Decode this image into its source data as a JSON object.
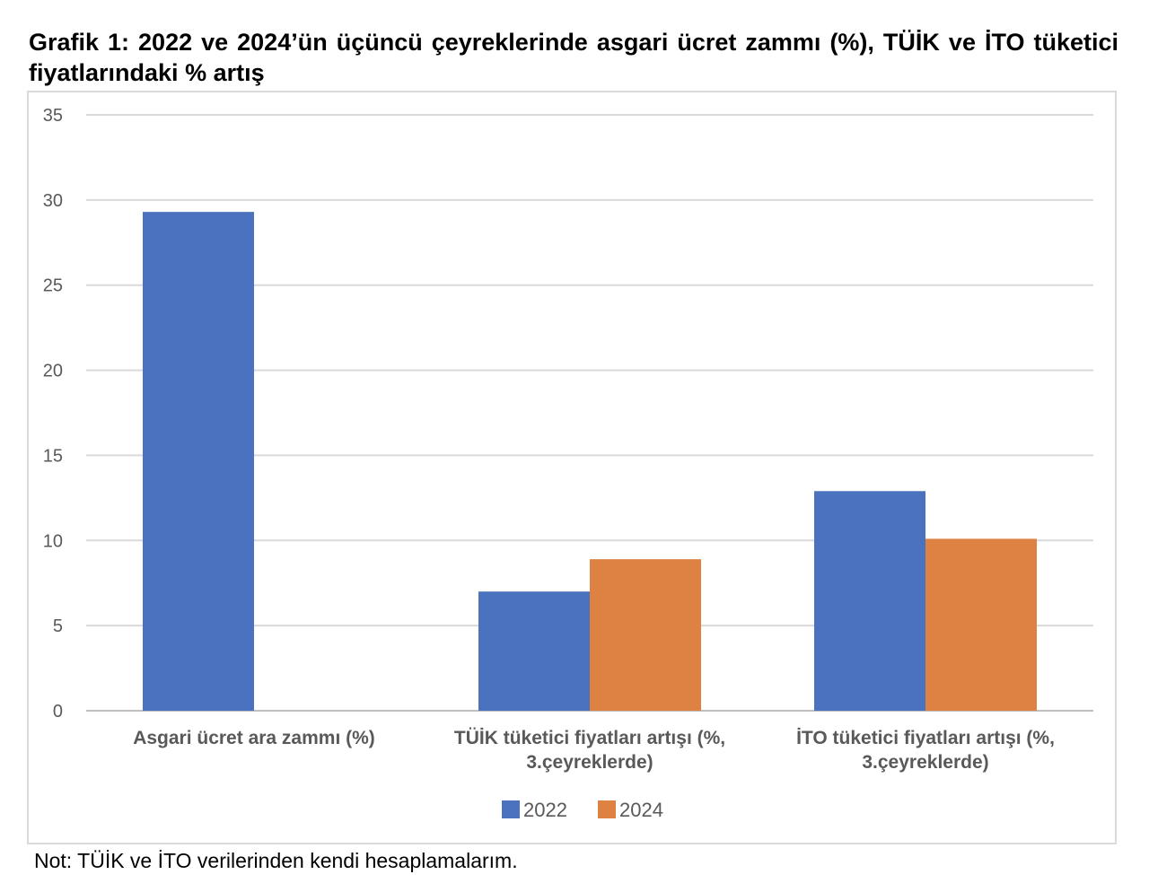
{
  "title": "Grafik 1: 2022 ve 2024’ün üçüncü çeyreklerinde asgari ücret zammı (%), TÜİK ve İTO tüketici fiyatlarındaki % artış",
  "note": "Not: TÜİK ve İTO verilerinden kendi hesaplamalarım.",
  "chart_data": {
    "type": "bar",
    "title": "Grafik 1: 2022 ve 2024’ün üçüncü çeyreklerinde asgari ücret zammı (%), TÜİK ve İTO tüketici fiyatlarındaki % artış",
    "categories": [
      [
        "Asgari ücret ara zammı (%)"
      ],
      [
        "TÜİK tüketici fiyatları artışı (%,",
        "3.çeyreklerde)"
      ],
      [
        "İTO tüketici fiyatları artışı (%,",
        "3.çeyreklerde)"
      ]
    ],
    "series": [
      {
        "name": "2022",
        "color": "#4a72be",
        "values": [
          29.3,
          7.0,
          12.9
        ]
      },
      {
        "name": "2024",
        "color": "#dd8243",
        "values": [
          null,
          8.9,
          10.1
        ]
      }
    ],
    "ylim": [
      0,
      35
    ],
    "yticks": [
      0,
      5,
      10,
      15,
      20,
      25,
      30,
      35
    ],
    "xlabel": "",
    "ylabel": "",
    "grid": true,
    "legend": "bottom"
  }
}
